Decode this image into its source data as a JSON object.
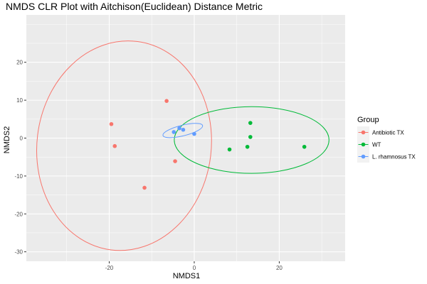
{
  "chart_data": {
    "type": "scatter",
    "title": "NMDS CLR Plot with Aitchison(Euclidean) Distance Metric",
    "xlabel": "NMDS1",
    "ylabel": "NMDS2",
    "xlim": [
      -39.5,
      35.5
    ],
    "ylim": [
      -32.5,
      32.5
    ],
    "x_ticks": [
      -20,
      0,
      20
    ],
    "y_ticks": [
      -30,
      -20,
      -10,
      0,
      10,
      20
    ],
    "grid": true,
    "background": "#ebebeb",
    "legend": {
      "title": "Group",
      "position": "right"
    },
    "series": [
      {
        "name": "Antibiotic TX",
        "color": "#F8766D",
        "points": [
          {
            "x": -6.5,
            "y": 9.8
          },
          {
            "x": -19.5,
            "y": 3.7
          },
          {
            "x": -18.7,
            "y": -2.1
          },
          {
            "x": -4.5,
            "y": -6.1
          },
          {
            "x": -11.7,
            "y": -13.1
          }
        ],
        "ellipse": {
          "cx": -16.5,
          "cy": -2,
          "rx": 20.5,
          "ry": 27.7,
          "angle": 7
        }
      },
      {
        "name": "WT",
        "color": "#00BA38",
        "points": [
          {
            "x": 13.2,
            "y": 4.0
          },
          {
            "x": 13.2,
            "y": 0.3
          },
          {
            "x": 12.5,
            "y": -2.3
          },
          {
            "x": 8.3,
            "y": -3.0
          },
          {
            "x": 25.9,
            "y": -2.3
          }
        ],
        "ellipse": {
          "cx": 13.5,
          "cy": -0.5,
          "rx": 18.2,
          "ry": 8.8,
          "angle": 0
        }
      },
      {
        "name": "L. rhamnosus TX",
        "color": "#619CFF",
        "points": [
          {
            "x": -3.5,
            "y": 2.6
          },
          {
            "x": -2.6,
            "y": 2.2
          },
          {
            "x": -4.8,
            "y": 1.6
          },
          {
            "x": 0.0,
            "y": 1.1
          }
        ],
        "ellipse": {
          "cx": -2.7,
          "cy": 2.0,
          "rx": 4.8,
          "ry": 1.4,
          "angle": -14
        }
      }
    ]
  }
}
